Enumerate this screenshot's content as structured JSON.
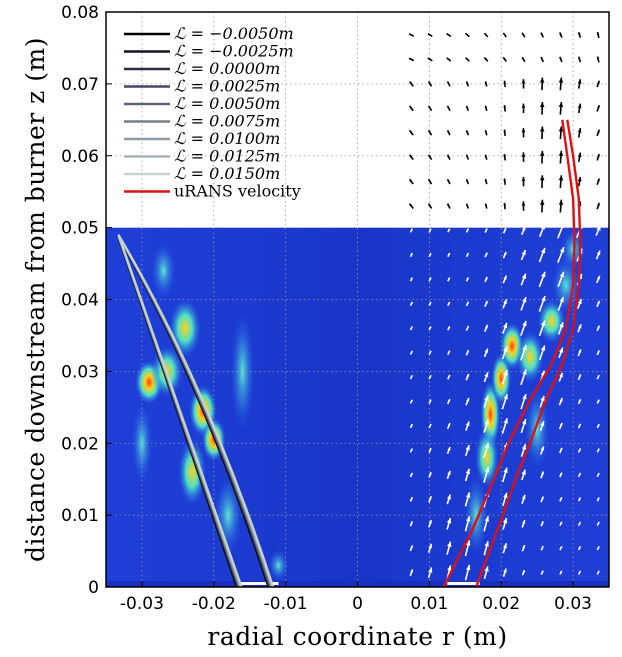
{
  "chart_data": {
    "type": "line",
    "title": "",
    "xlabel": "radial coordinate r (m)",
    "ylabel": "distance downstream from burner z (m)",
    "xlim": [
      -0.035,
      0.035
    ],
    "ylim": [
      0,
      0.08
    ],
    "grid": true,
    "xticks": [
      -0.03,
      -0.02,
      -0.01,
      0,
      0.01,
      0.02,
      0.03
    ],
    "xtick_labels": [
      "-0.03",
      "-0.02",
      "-0.01",
      "0",
      "0.01",
      "0.02",
      "0.03"
    ],
    "yticks": [
      0,
      0.01,
      0.02,
      0.03,
      0.04,
      0.05,
      0.06,
      0.07,
      0.08
    ],
    "ytick_labels": [
      "0",
      "0.01",
      "0.02",
      "0.03",
      "0.04",
      "0.05",
      "0.06",
      "0.07",
      "0.08"
    ],
    "background_image": "flame chemiluminescence intensity field (jet colormap) for z from 0 to 0.05, with velocity vector arrows",
    "legend_location": "top-left",
    "series": [
      {
        "name": "ℒ = −0.0050m",
        "color": "#000000",
        "left_x": [
          -0.0168,
          -0.0334
        ],
        "left_y": [
          0,
          0.049
        ],
        "right_x": [
          -0.0124,
          -0.0334
        ],
        "right_y": [
          0,
          0.049
        ]
      },
      {
        "name": "ℒ = −0.0025m",
        "color": "#141425",
        "left_x": [
          -0.0168,
          -0.0334
        ],
        "left_y": [
          0,
          0.049
        ],
        "right_x": [
          -0.0124,
          -0.0334
        ],
        "right_y": [
          0,
          0.049
        ]
      },
      {
        "name": "ℒ = 0.0000m",
        "color": "#2b2b44",
        "left_x": [
          -0.0168,
          -0.0334
        ],
        "left_y": [
          0,
          0.049
        ],
        "right_x": [
          -0.0124,
          -0.0334
        ],
        "right_y": [
          0,
          0.049
        ]
      },
      {
        "name": "ℒ = 0.0025m",
        "color": "#474763",
        "left_x": [
          -0.0168,
          -0.0334
        ],
        "left_y": [
          0,
          0.049
        ],
        "right_x": [
          -0.0124,
          -0.0334
        ],
        "right_y": [
          0,
          0.049
        ]
      },
      {
        "name": "ℒ = 0.0050m",
        "color": "#5d6478",
        "left_x": [
          -0.0168,
          -0.0334
        ],
        "left_y": [
          0,
          0.049
        ],
        "right_x": [
          -0.0124,
          -0.0334
        ],
        "right_y": [
          0,
          0.049
        ]
      },
      {
        "name": "ℒ = 0.0075m",
        "color": "#737f8c",
        "left_x": [
          -0.0168,
          -0.0334
        ],
        "left_y": [
          0,
          0.049
        ],
        "right_x": [
          -0.0124,
          -0.0334
        ],
        "right_y": [
          0,
          0.049
        ]
      },
      {
        "name": "ℒ = 0.0100m",
        "color": "#8b9da0",
        "left_x": [
          -0.0168,
          -0.0334
        ],
        "left_y": [
          0,
          0.049
        ],
        "right_x": [
          -0.0124,
          -0.0334
        ],
        "right_y": [
          0,
          0.049
        ]
      },
      {
        "name": "ℒ = 0.0125m",
        "color": "#a5b8b8",
        "left_x": [
          -0.0168,
          -0.0334
        ],
        "left_y": [
          0,
          0.049
        ],
        "right_x": [
          -0.0124,
          -0.0334
        ],
        "right_y": [
          0,
          0.049
        ]
      },
      {
        "name": "ℒ = 0.0150m",
        "color": "#c4d2d0",
        "left_x": [
          -0.0168,
          -0.0334
        ],
        "left_y": [
          0,
          0.049
        ],
        "right_x": [
          -0.0124,
          -0.0334
        ],
        "right_y": [
          0,
          0.049
        ]
      },
      {
        "name": "uRANS velocity",
        "color": "#e01010",
        "curves": [
          {
            "x": [
              0.012,
              0.016,
              0.019,
              0.021,
              0.024,
              0.027,
              0.029,
              0.03,
              0.0302,
              0.03,
              0.0292,
              0.0285
            ],
            "y": [
              0,
              0.008,
              0.015,
              0.02,
              0.026,
              0.031,
              0.036,
              0.042,
              0.048,
              0.054,
              0.06,
              0.065
            ]
          },
          {
            "x": [
              0.0165,
              0.0195,
              0.022,
              0.024,
              0.0262,
              0.0285,
              0.03,
              0.0308,
              0.031,
              0.0308,
              0.03,
              0.0292
            ],
            "y": [
              0,
              0.008,
              0.015,
              0.02,
              0.026,
              0.031,
              0.036,
              0.042,
              0.048,
              0.054,
              0.06,
              0.065
            ]
          }
        ]
      }
    ]
  }
}
